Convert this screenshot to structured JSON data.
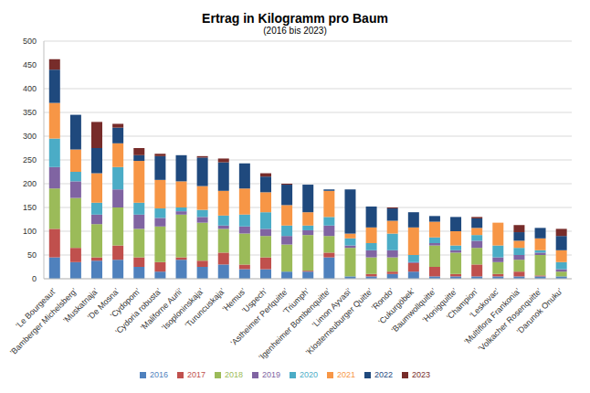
{
  "chart_data": {
    "type": "bar",
    "title": "Ertrag in Kilogramm pro Baum",
    "subtitle": "(2016 bis 2023)",
    "stacked": true,
    "grid": true,
    "legend": "bottom",
    "categories": [
      "'Le Bourgeaut'",
      "'Bamberger Michelsberg'",
      "'Muskatnaja'",
      "'De Mosna'",
      "'Cydopom'",
      "'Cydoria robusta'",
      "'Maliforne Aurii'",
      "'Isoploninskaja'",
      "'Turuncuskaja'",
      "'Hemus'",
      "'Uspech'",
      "'Astheimer Perlquitte'",
      "'Triumph'",
      "'Igenheimer Bombenquitte'",
      "'Limon Ayvasi'",
      "'Klosterneuburger Quitte'",
      "'Rondo'",
      "'Cukurgöbek'",
      "'Baumwollquitte'",
      "'Honigquitte'",
      "'Champion'",
      "'Leskovac'",
      "'Multiflora Frankonia'",
      "'Volkacher Rosenquitte'",
      "'Darunok Onuku'"
    ],
    "series": [
      {
        "name": "2016",
        "color": "#4f81bd",
        "values": [
          45,
          35,
          38,
          40,
          25,
          15,
          40,
          25,
          30,
          20,
          20,
          15,
          15,
          45,
          5,
          5,
          10,
          15,
          5,
          5,
          5,
          5,
          5,
          5,
          5
        ]
      },
      {
        "name": "2017",
        "color": "#c0504d",
        "values": [
          60,
          30,
          7,
          30,
          20,
          20,
          5,
          13,
          25,
          10,
          25,
          0,
          2,
          10,
          0,
          5,
          5,
          18,
          20,
          5,
          25,
          5,
          10,
          2,
          0
        ]
      },
      {
        "name": "2018",
        "color": "#9bbb59",
        "values": [
          85,
          105,
          70,
          80,
          60,
          75,
          90,
          80,
          50,
          65,
          45,
          57,
          75,
          35,
          60,
          35,
          30,
          0,
          45,
          45,
          35,
          25,
          25,
          43,
          10
        ]
      },
      {
        "name": "2019",
        "color": "#8064a2",
        "values": [
          45,
          35,
          20,
          38,
          30,
          18,
          7,
          12,
          7,
          15,
          15,
          18,
          10,
          22,
          5,
          15,
          15,
          2,
          5,
          5,
          15,
          10,
          10,
          5,
          5
        ]
      },
      {
        "name": "2020",
        "color": "#4bacc6",
        "values": [
          60,
          20,
          25,
          47,
          25,
          20,
          8,
          15,
          21,
          25,
          35,
          22,
          10,
          18,
          15,
          15,
          35,
          15,
          12,
          10,
          12,
          25,
          15,
          5,
          15
        ]
      },
      {
        "name": "2021",
        "color": "#f79646",
        "values": [
          75,
          47,
          62,
          50,
          88,
          60,
          55,
          50,
          52,
          55,
          42,
          43,
          28,
          55,
          10,
          33,
          27,
          58,
          33,
          30,
          15,
          48,
          15,
          25,
          25
        ]
      },
      {
        "name": "2022",
        "color": "#1f497d",
        "values": [
          70,
          73,
          53,
          33,
          12,
          50,
          55,
          60,
          60,
          53,
          33,
          43,
          58,
          3,
          93,
          44,
          26,
          32,
          12,
          30,
          20,
          0,
          18,
          22,
          30
        ]
      },
      {
        "name": "2023",
        "color": "#772c2a",
        "values": [
          22,
          0,
          55,
          8,
          15,
          5,
          0,
          3,
          8,
          0,
          7,
          2,
          0,
          0,
          0,
          0,
          2,
          0,
          0,
          0,
          3,
          0,
          15,
          0,
          15
        ]
      }
    ],
    "ylim": [
      0,
      500
    ],
    "yticks": [
      0,
      50,
      100,
      150,
      200,
      250,
      300,
      350,
      400,
      450,
      500
    ]
  }
}
